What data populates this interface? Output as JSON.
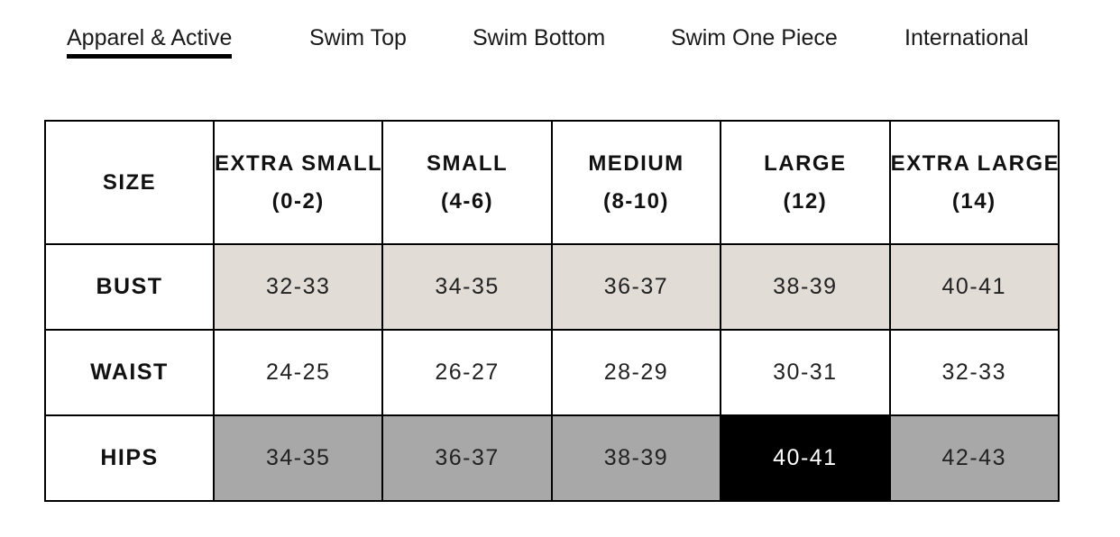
{
  "tabs": [
    {
      "label": "Apparel & Active",
      "active": true
    },
    {
      "label": "Swim Top",
      "active": false
    },
    {
      "label": "Swim Bottom",
      "active": false
    },
    {
      "label": "Swim One Piece",
      "active": false
    },
    {
      "label": "International",
      "active": false
    }
  ],
  "table": {
    "corner_label": "SIZE",
    "columns": [
      {
        "name": "EXTRA SMALL",
        "range": "(0-2)"
      },
      {
        "name": "SMALL",
        "range": "(4-6)"
      },
      {
        "name": "MEDIUM",
        "range": "(8-10)"
      },
      {
        "name": "LARGE",
        "range": "(12)"
      },
      {
        "name": "EXTRA LARGE",
        "range": "(14)"
      }
    ],
    "rows": [
      {
        "label": "BUST",
        "values": [
          "32-33",
          "34-35",
          "36-37",
          "38-39",
          "40-41"
        ]
      },
      {
        "label": "WAIST",
        "values": [
          "24-25",
          "26-27",
          "28-29",
          "30-31",
          "32-33"
        ]
      },
      {
        "label": "HIPS",
        "values": [
          "34-35",
          "36-37",
          "38-39",
          "40-41",
          "42-43"
        ]
      }
    ],
    "highlighted_cell": {
      "row": 2,
      "column": 3
    }
  },
  "colors": {
    "bust_row_bg": "#e2dcd7",
    "waist_row_bg": "#ffffff",
    "hips_row_bg": "#a8a8a8",
    "highlight_bg": "#000000",
    "highlight_text": "#ffffff",
    "border": "#000000",
    "tab_underline": "#000000"
  }
}
